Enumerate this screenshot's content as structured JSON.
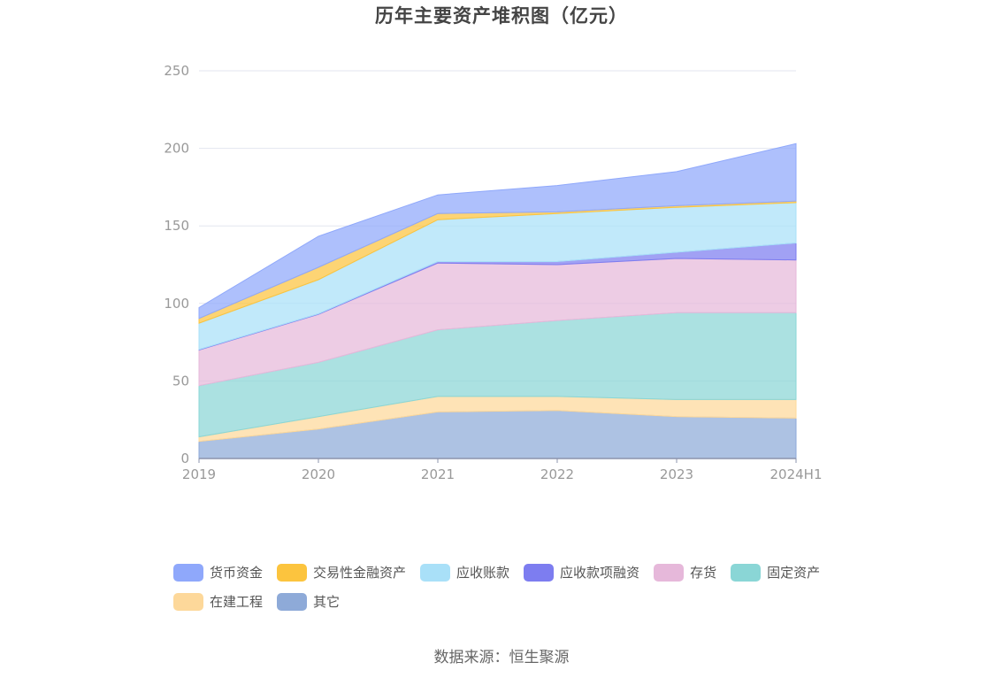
{
  "chart_data": {
    "type": "area",
    "title": "历年主要资产堆积图（亿元）",
    "xlabel": "",
    "ylabel": "",
    "stacked": true,
    "categories": [
      "2019",
      "2020",
      "2021",
      "2022",
      "2023",
      "2024H1"
    ],
    "ylim": [
      0,
      250
    ],
    "yticks": [
      0,
      50,
      100,
      150,
      200,
      250
    ],
    "grid": true,
    "legend_position": "bottom",
    "series": [
      {
        "name": "其它",
        "color": "#8eaad8",
        "values": [
          11,
          19,
          30,
          31,
          27,
          26
        ]
      },
      {
        "name": "在建工程",
        "color": "#fdd89a",
        "values": [
          3,
          8,
          10,
          9,
          11,
          12
        ]
      },
      {
        "name": "固定资产",
        "color": "#8ad6d6",
        "values": [
          33,
          35,
          43,
          49,
          56,
          56
        ]
      },
      {
        "name": "存货",
        "color": "#e6b8da",
        "values": [
          23,
          31,
          43,
          36,
          35,
          34
        ]
      },
      {
        "name": "应收款项融资",
        "color": "#7d7df0",
        "values": [
          0.3,
          0.3,
          1,
          2,
          4,
          11
        ]
      },
      {
        "name": "应收账款",
        "color": "#a9e0f8",
        "values": [
          17,
          22,
          27,
          31,
          29,
          26
        ]
      },
      {
        "name": "交易性金融资产",
        "color": "#fcc43e",
        "values": [
          3,
          8,
          4,
          1,
          1,
          1
        ]
      },
      {
        "name": "货币资金",
        "color": "#8fa8fb",
        "values": [
          7,
          20,
          12,
          17,
          22,
          37
        ]
      }
    ]
  },
  "legend": [
    {
      "label": "货币资金",
      "color": "#8fa8fb"
    },
    {
      "label": "交易性金融资产",
      "color": "#fcc43e"
    },
    {
      "label": "应收账款",
      "color": "#a9e0f8"
    },
    {
      "label": "应收款项融资",
      "color": "#7d7df0"
    },
    {
      "label": "存货",
      "color": "#e6b8da"
    },
    {
      "label": "固定资产",
      "color": "#8ad6d6"
    },
    {
      "label": "在建工程",
      "color": "#fdd89a"
    },
    {
      "label": "其它",
      "color": "#8eaad8"
    }
  ],
  "source": "数据来源：恒生聚源"
}
